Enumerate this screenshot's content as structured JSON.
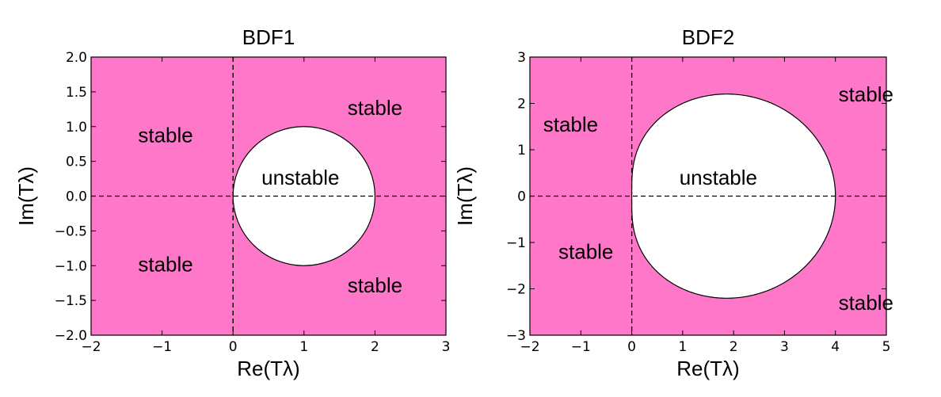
{
  "chart_data": [
    {
      "type": "area",
      "title": "BDF1",
      "xlabel": "Re(Tλ)",
      "ylabel": "Im(Tλ)",
      "xlim": [
        -2,
        3
      ],
      "ylim": [
        -2,
        2
      ],
      "x_ticks": [
        "−2",
        "−1",
        "0",
        "1",
        "2",
        "3"
      ],
      "x_tick_values": [
        -2,
        -1,
        0,
        1,
        2,
        3
      ],
      "y_ticks": [
        "−2.0",
        "−1.5",
        "−1.0",
        "−0.5",
        "0.0",
        "0.5",
        "1.0",
        "1.5",
        "2.0"
      ],
      "y_tick_values": [
        -2.0,
        -1.5,
        -1.0,
        -0.5,
        0.0,
        0.5,
        1.0,
        1.5,
        2.0
      ],
      "fill_color": "#ff77c8",
      "unstable_boundary": {
        "type": "circle",
        "center": [
          1,
          0
        ],
        "radius": 1
      },
      "reference_lines": {
        "x": 0,
        "y": 0,
        "style": "dashed"
      },
      "annotations": [
        {
          "text": "stable",
          "x": -0.95,
          "y": 0.88
        },
        {
          "text": "stable",
          "x": 2.0,
          "y": 1.27
        },
        {
          "text": "unstable",
          "x": 0.95,
          "y": 0.27
        },
        {
          "text": "stable",
          "x": -0.95,
          "y": -0.98
        },
        {
          "text": "stable",
          "x": 2.0,
          "y": -1.28
        }
      ]
    },
    {
      "type": "area",
      "title": "BDF2",
      "xlabel": "Re(Tλ)",
      "ylabel": "Im(Tλ)",
      "xlim": [
        -2,
        5
      ],
      "ylim": [
        -3,
        3
      ],
      "x_ticks": [
        "−2",
        "−1",
        "0",
        "1",
        "2",
        "3",
        "4",
        "5"
      ],
      "x_tick_values": [
        -2,
        -1,
        0,
        1,
        2,
        3,
        4,
        5
      ],
      "y_ticks": [
        "−3",
        "−2",
        "−1",
        "0",
        "1",
        "2",
        "3"
      ],
      "y_tick_values": [
        -3,
        -2,
        -1,
        0,
        1,
        2,
        3
      ],
      "fill_color": "#ff77c8",
      "unstable_boundary": {
        "type": "bdf2_root_locus",
        "max_real": 4,
        "max_imag": 2.2
      },
      "reference_lines": {
        "x": 0,
        "y": 0,
        "style": "dashed"
      },
      "annotations": [
        {
          "text": "stable",
          "x": -1.2,
          "y": 1.55
        },
        {
          "text": "stable",
          "x": 4.6,
          "y": 2.2
        },
        {
          "text": "unstable",
          "x": 1.7,
          "y": 0.4
        },
        {
          "text": "stable",
          "x": -0.9,
          "y": -1.2
        },
        {
          "text": "stable",
          "x": 4.6,
          "y": -2.3
        }
      ]
    }
  ]
}
